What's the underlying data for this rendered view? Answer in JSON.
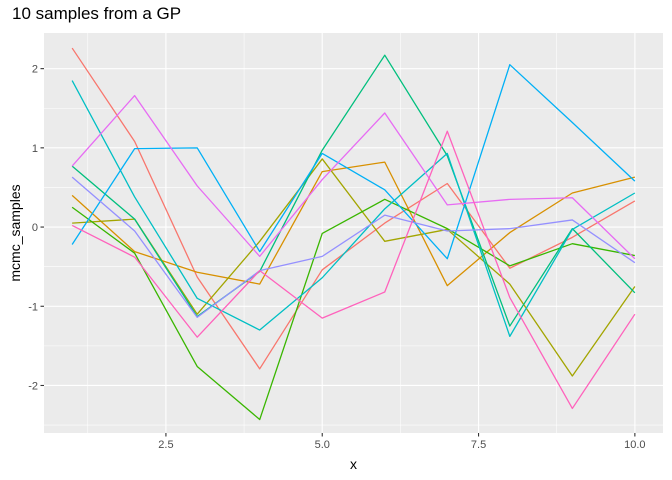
{
  "chart_data": {
    "type": "line",
    "title": "10 samples from a GP",
    "xlabel": "x",
    "ylabel": "mcmc_samples",
    "xlim": [
      0.55,
      10.45
    ],
    "ylim": [
      -2.6,
      2.45
    ],
    "grid": true,
    "legend": "none",
    "xticks": [
      2.5,
      5.0,
      7.5,
      10.0
    ],
    "xtick_labels": [
      "2.5",
      "5.0",
      "7.5",
      "10.0"
    ],
    "yticks": [
      -2,
      -1,
      0,
      1,
      2
    ],
    "ytick_labels": [
      "-2",
      "-1",
      "0",
      "1",
      "2"
    ],
    "x": [
      1,
      2,
      3,
      4,
      5,
      6,
      7,
      8,
      9,
      10
    ],
    "series": [
      {
        "color": "#F8766D",
        "values": [
          2.26,
          1.08,
          -0.63,
          -1.79,
          -0.54,
          0.05,
          0.55,
          -0.52,
          -0.13,
          0.33
        ]
      },
      {
        "color": "#D89000",
        "values": [
          0.4,
          -0.31,
          -0.57,
          -0.72,
          0.7,
          0.82,
          -0.74,
          -0.07,
          0.43,
          0.63
        ]
      },
      {
        "color": "#A3A500",
        "values": [
          0.05,
          0.1,
          -1.1,
          -0.18,
          0.86,
          -0.18,
          -0.03,
          -0.72,
          -1.88,
          -0.75
        ]
      },
      {
        "color": "#39B600",
        "values": [
          0.25,
          -0.33,
          -1.76,
          -2.43,
          -0.08,
          0.35,
          -0.02,
          -0.49,
          -0.21,
          -0.36
        ]
      },
      {
        "color": "#00BF7D",
        "values": [
          0.77,
          0.1,
          -1.13,
          -0.56,
          0.97,
          2.17,
          0.9,
          -1.25,
          -0.02,
          -0.83
        ]
      },
      {
        "color": "#00BFC4",
        "values": [
          1.85,
          0.38,
          -0.9,
          -1.3,
          -0.64,
          0.23,
          0.93,
          -1.38,
          -0.03,
          0.43
        ]
      },
      {
        "color": "#00B0F6",
        "values": [
          -0.22,
          0.99,
          1.0,
          -0.31,
          0.93,
          0.47,
          -0.4,
          2.05,
          1.32,
          0.58
        ]
      },
      {
        "color": "#9590FF",
        "values": [
          0.63,
          -0.05,
          -1.14,
          -0.55,
          -0.37,
          0.15,
          -0.05,
          -0.02,
          0.09,
          -0.45
        ]
      },
      {
        "color": "#E76BF3",
        "values": [
          0.77,
          1.66,
          0.52,
          -0.37,
          0.6,
          1.44,
          0.28,
          0.35,
          0.37,
          -0.4
        ]
      },
      {
        "color": "#FF62BC",
        "values": [
          0.02,
          -0.38,
          -1.39,
          -0.55,
          -1.15,
          -0.82,
          1.21,
          -0.89,
          -2.29,
          -1.1
        ]
      }
    ]
  }
}
